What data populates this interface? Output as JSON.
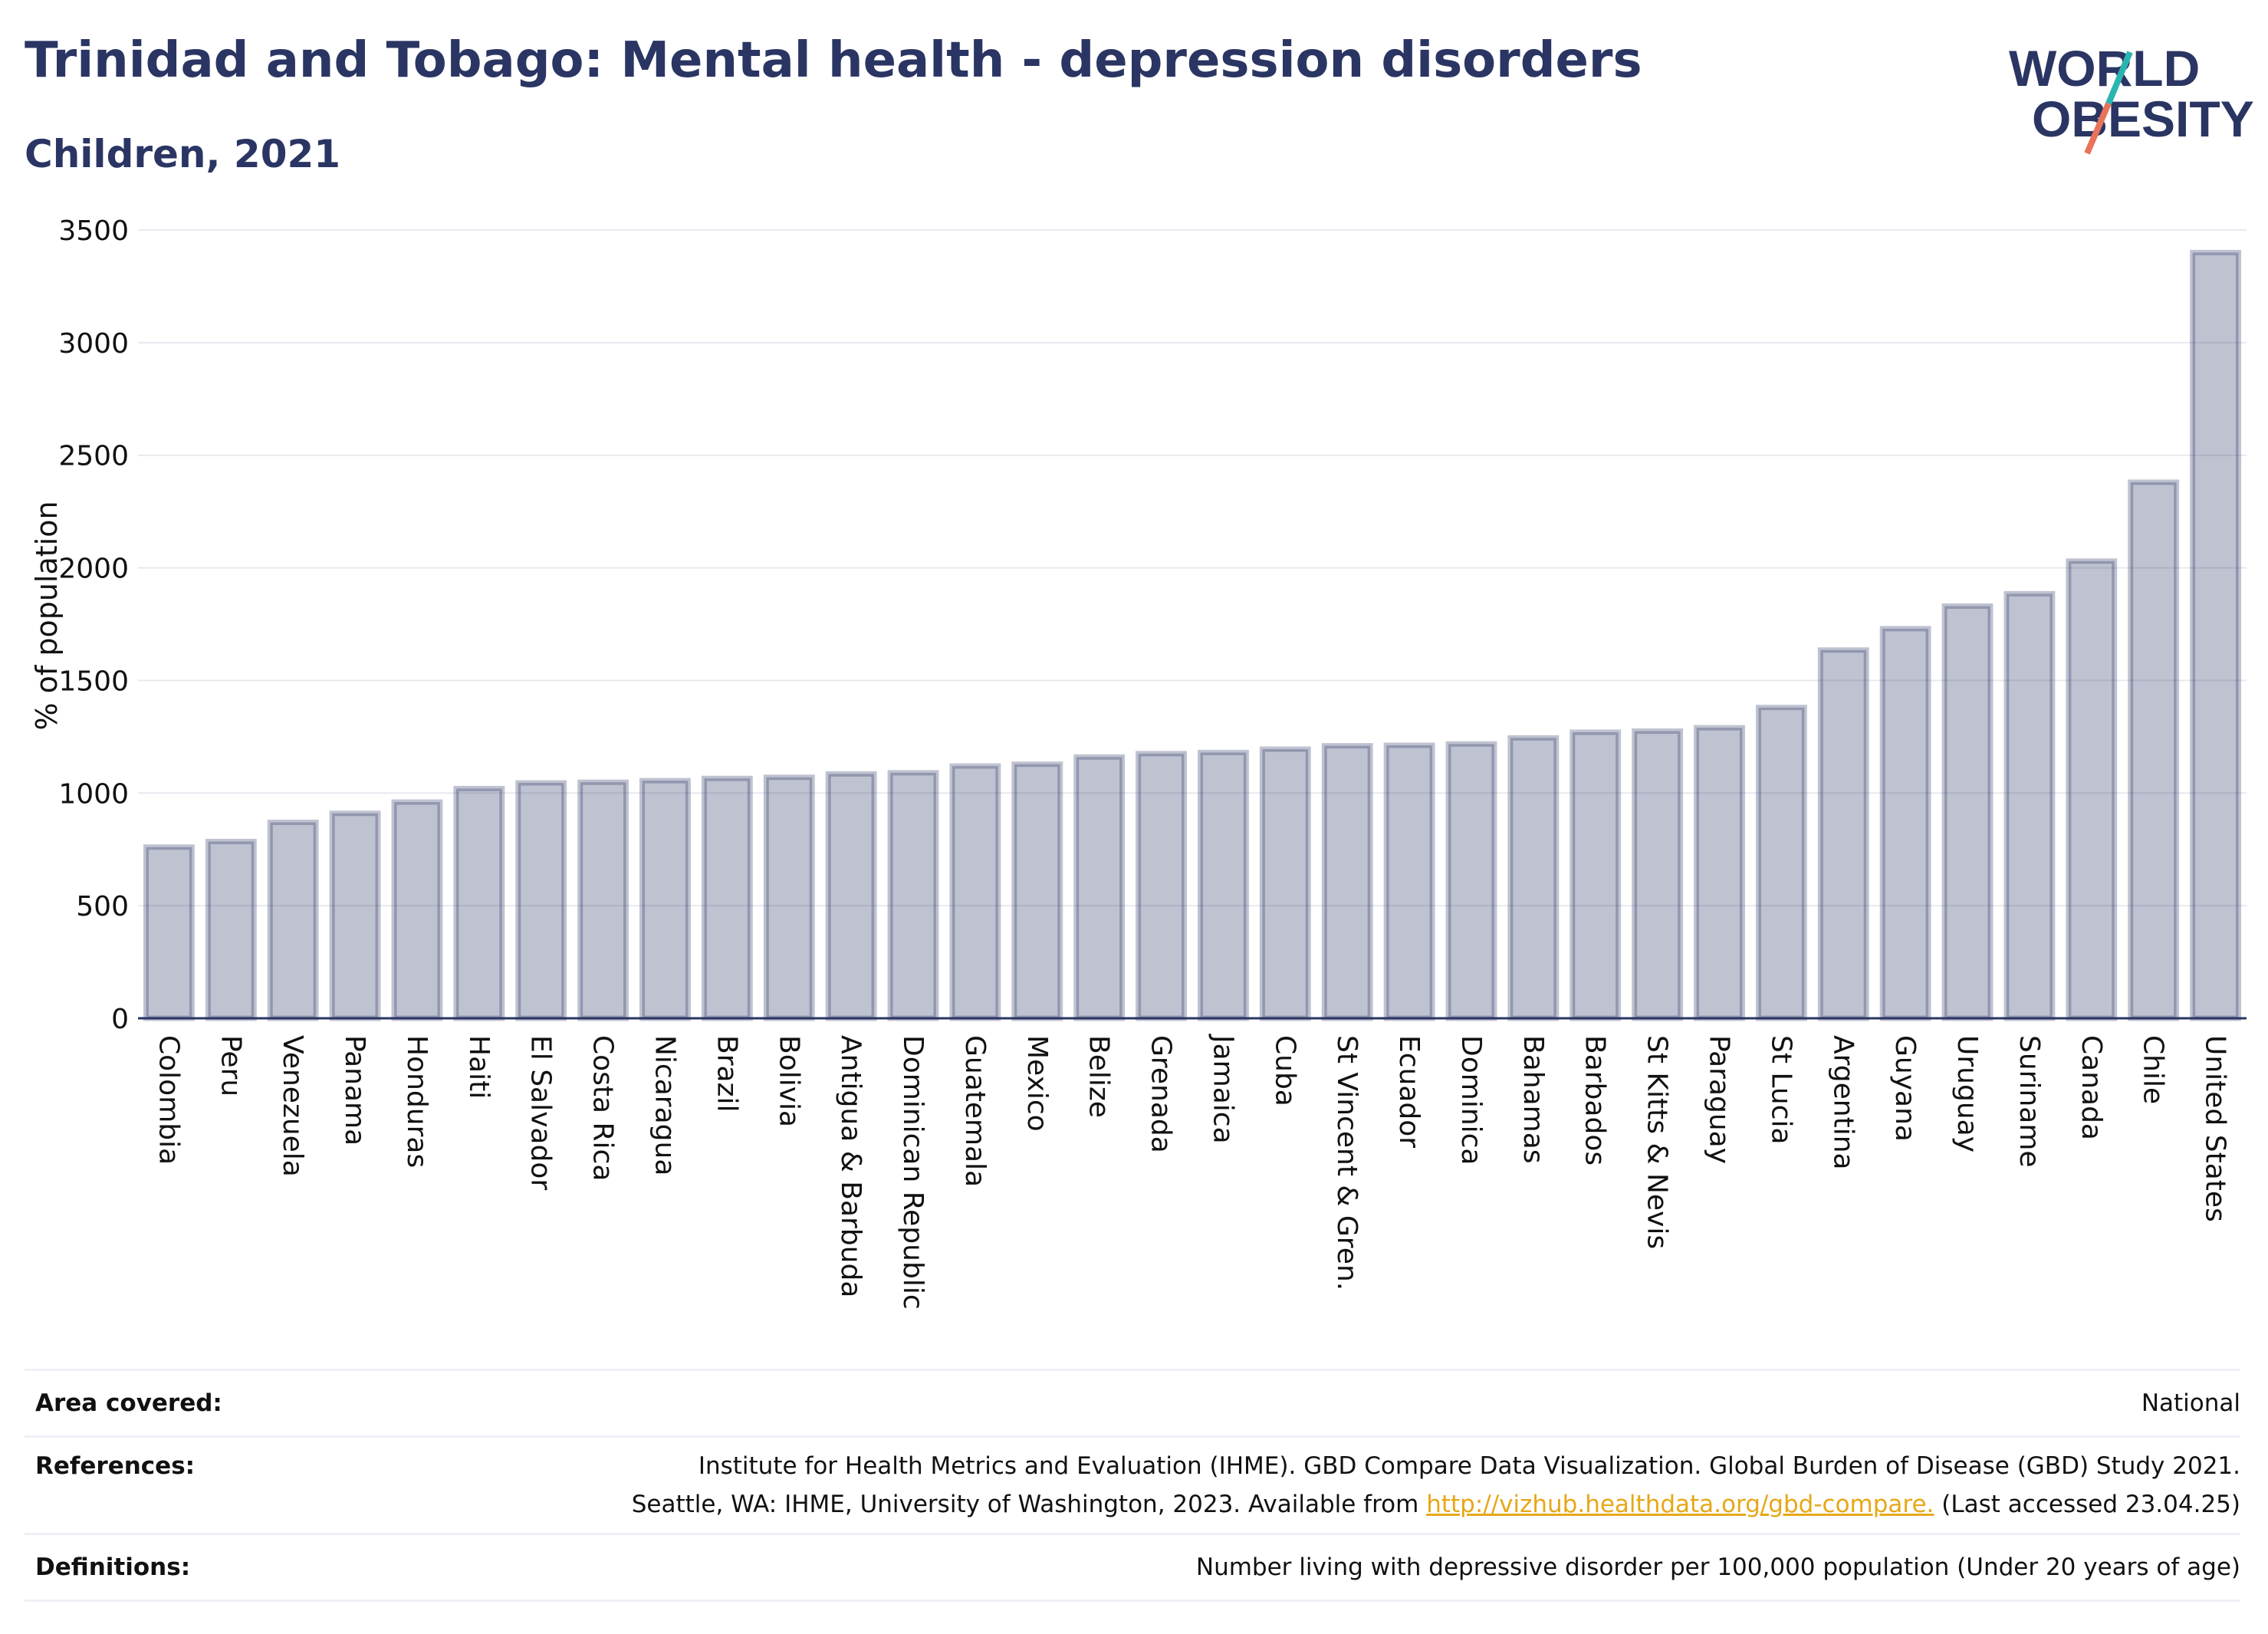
{
  "header": {
    "title": "Trinidad and Tobago: Mental health - depression disorders",
    "subtitle": "Children, 2021"
  },
  "logo": {
    "line1": "WORLD",
    "line2": "OBESITY",
    "accent_teal": "#2bb5b0",
    "accent_coral": "#e8735a"
  },
  "chart_data": {
    "type": "bar",
    "ylabel": "% of population",
    "xlabel": "",
    "ylim": [
      0,
      3500
    ],
    "yticks": [
      0,
      500,
      1000,
      1500,
      2000,
      2500,
      3000,
      3500
    ],
    "grid": true,
    "bar_color": "#2a3563",
    "categories": [
      "Colombia",
      "Peru",
      "Venezuela",
      "Panama",
      "Honduras",
      "Haiti",
      "El Salvador",
      "Costa Rica",
      "Nicaragua",
      "Brazil",
      "Bolivia",
      "Antigua & Barbuda",
      "Dominican Republic",
      "Guatemala",
      "Mexico",
      "Belize",
      "Grenada",
      "Jamaica",
      "Cuba",
      "St Vincent & Gren.",
      "Ecuador",
      "Dominica",
      "Bahamas",
      "Barbados",
      "St Kitts & Nevis",
      "Paraguay",
      "St Lucia",
      "Argentina",
      "Guyana",
      "Uruguay",
      "Suriname",
      "Canada",
      "Chile",
      "United States"
    ],
    "values": [
      760,
      785,
      870,
      910,
      960,
      1020,
      1045,
      1048,
      1055,
      1065,
      1070,
      1085,
      1090,
      1120,
      1128,
      1160,
      1175,
      1180,
      1195,
      1210,
      1212,
      1218,
      1245,
      1270,
      1275,
      1290,
      1380,
      1635,
      1730,
      1830,
      1885,
      2030,
      2380,
      3400
    ]
  },
  "footer": {
    "area_label": "Area covered:",
    "area_value": "National",
    "references_label": "References:",
    "references_line1": "Institute for Health Metrics and Evaluation (IHME). GBD Compare Data Visualization. Global Burden of Disease (GBD) Study 2021.",
    "references_line2_pre": "Seattle, WA: IHME, University of Washington, 2023. Available from ",
    "references_link": "http://vizhub.healthdata.org/gbd-compare.",
    "references_line2_post": " (Last accessed 23.04.25)",
    "definitions_label": "Definitions:",
    "definitions_value": "Number living with depressive disorder per 100,000 population (Under 20 years of age)"
  }
}
